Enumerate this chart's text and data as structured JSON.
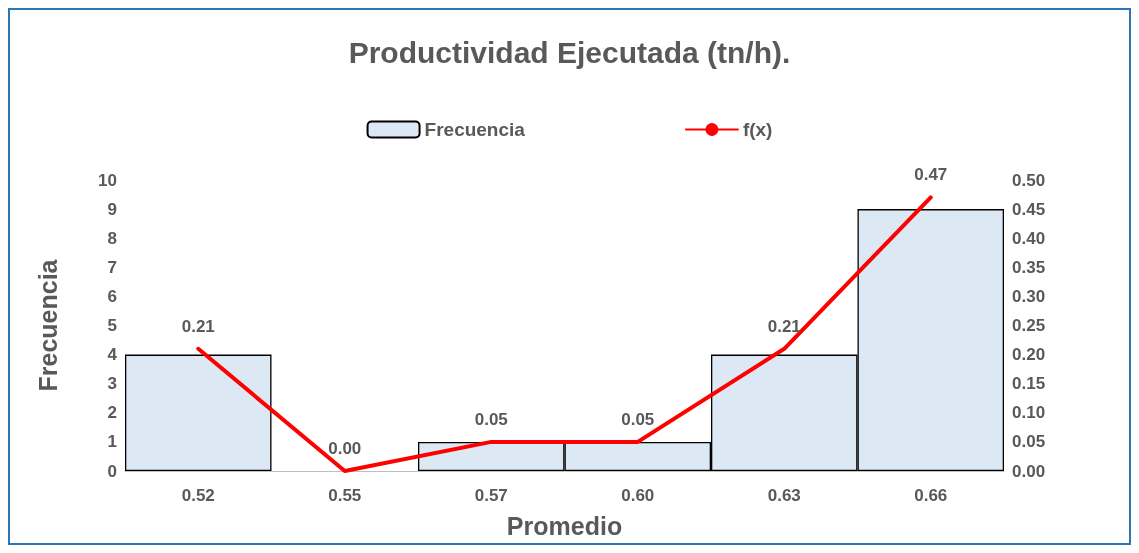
{
  "chart_data": {
    "type": "bar",
    "title": "Productividad Ejecutada (tn/h).",
    "xlabel": "Promedio",
    "ylabel": "Frecuencia",
    "categories": [
      "0.52",
      "0.55",
      "0.57",
      "0.60",
      "0.63",
      "0.66"
    ],
    "series": [
      {
        "name": "Frecuencia",
        "color": "#dde8f5",
        "values": [
          4,
          0,
          1,
          1,
          4,
          9
        ]
      },
      {
        "name": "f(x)",
        "type": "line",
        "axis": "y2",
        "color": "#ff0000",
        "values": [
          0.21,
          0,
          0.05,
          0.05,
          0.21,
          0.47
        ],
        "value_labels": [
          "0.21",
          "0.00",
          "0.05",
          "0.05",
          "0.21",
          "0.47"
        ]
      }
    ],
    "ylim": [
      0,
      10
    ],
    "yticks": [
      0,
      1,
      2,
      3,
      4,
      5,
      6,
      7,
      8,
      9,
      10
    ],
    "y2lim": [
      0,
      0.5
    ],
    "y2ticks": [
      {
        "value": 0,
        "label": "0.00"
      },
      {
        "value": 0.05,
        "label": "0.05"
      },
      {
        "value": 0.1,
        "label": "0.10"
      },
      {
        "value": 0.15,
        "label": "0.15"
      },
      {
        "value": 0.2,
        "label": "0.20"
      },
      {
        "value": 0.25,
        "label": "0.25"
      },
      {
        "value": 0.3,
        "label": "0.30"
      },
      {
        "value": 0.35,
        "label": "0.35"
      },
      {
        "value": 0.4,
        "label": "0.40"
      },
      {
        "value": 0.45,
        "label": "0.45"
      },
      {
        "value": 0.5,
        "label": "0.50"
      }
    ],
    "grid": false,
    "legend": "top",
    "marker": "none",
    "line_style": "solid"
  }
}
